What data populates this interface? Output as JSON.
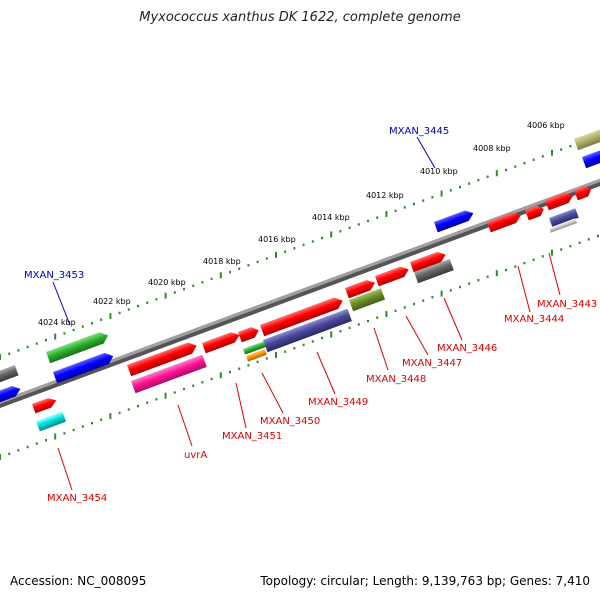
{
  "title": "Myxococcus xanthus DK 1622, complete genome",
  "footer": {
    "accession": "Accession: NC_008095",
    "summary": "Topology: circular; Length: 9,139,763 bp; Genes: 7,410"
  },
  "colors": {
    "backbone": "#808080",
    "ticks": "#2e8b2e",
    "label_forward": "#0000cc",
    "label_reverse": "#dd0000"
  },
  "kbp_labels": [
    "4006 kbp",
    "4008 kbp",
    "4010 kbp",
    "4012 kbp",
    "4014 kbp",
    "4016 kbp",
    "4018 kbp",
    "4020 kbp",
    "4022 kbp",
    "4024 kbp"
  ],
  "forward_labels": [
    "MXAN_3445",
    "MXAN_3453"
  ],
  "reverse_labels": [
    "MXAN_3443",
    "MXAN_3444",
    "MXAN_3446",
    "MXAN_3447",
    "MXAN_3448",
    "MXAN_3449",
    "MXAN_3450",
    "MXAN_3451",
    "uvrA",
    "MXAN_3454"
  ]
}
